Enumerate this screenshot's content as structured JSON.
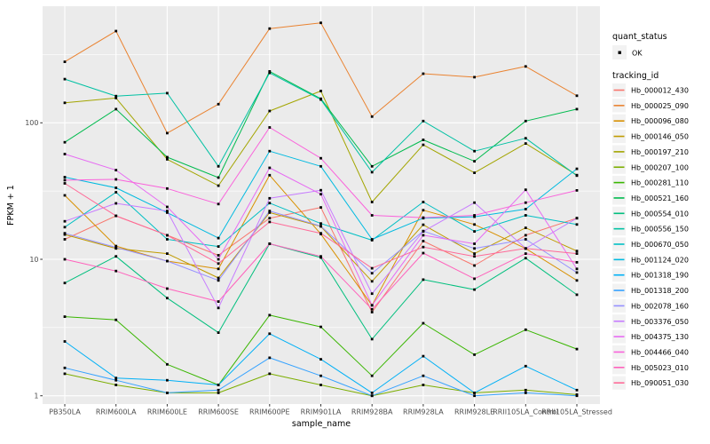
{
  "legend": {
    "quant_status_title": "quant_status",
    "quant_status_items": [
      {
        "label": "OK",
        "marker": "black-square-point"
      }
    ],
    "tracking_id_title": "tracking_id"
  },
  "colors": {
    "panel_bg": "#EBEBEB",
    "grid": "#FFFFFF",
    "tick_text": "#4D4D4D",
    "marker": "#000000",
    "legend_key_bg": "#F2F2F2"
  },
  "chart_data": {
    "type": "line",
    "title": "",
    "xlabel": "sample_name",
    "ylabel": "FPKM + 1",
    "y_scale": "log10",
    "y_ticks": [
      1,
      10,
      100
    ],
    "ylim": [
      1,
      700
    ],
    "grid": "on",
    "legend_position": "right",
    "marker": "black-square",
    "categories": [
      "PB350LA",
      "RRIM600LA",
      "RRIM600LE",
      "RRIM600SE",
      "RRIM600PE",
      "RRIM901LA",
      "RRIM928BA",
      "RRIM928LA",
      "RRIM928LE",
      "RRII105LA_Control",
      "RRII105LA_Stressed"
    ],
    "series": [
      {
        "name": "Hb_000012_430",
        "color": "#F8766D",
        "values": [
          14,
          20.8,
          15,
          10.7,
          20,
          24,
          4.1,
          13.6,
          9,
          15,
          20
        ]
      },
      {
        "name": "Hb_000025_090",
        "color": "#EA8331",
        "values": [
          280,
          470,
          84,
          137,
          490,
          540,
          111,
          229,
          216,
          259,
          158
        ]
      },
      {
        "name": "Hb_000096_080",
        "color": "#D89000",
        "values": [
          29.4,
          12.5,
          9.7,
          8.5,
          41.3,
          15.3,
          4.6,
          22.9,
          18,
          12,
          7
        ]
      },
      {
        "name": "Hb_000146_050",
        "color": "#C09B00",
        "values": [
          15.2,
          12,
          11,
          7.3,
          22,
          17.4,
          6.9,
          17.9,
          11,
          17,
          11.5
        ]
      },
      {
        "name": "Hb_000197_210",
        "color": "#A3A500",
        "values": [
          140,
          152,
          54,
          34.6,
          122,
          171,
          26.3,
          69,
          43,
          70.5,
          41.4
        ]
      },
      {
        "name": "Hb_000207_100",
        "color": "#7CAE00",
        "values": [
          1.45,
          1.2,
          1.05,
          1.05,
          1.45,
          1.2,
          1.0,
          1.2,
          1.05,
          1.1,
          1.02
        ]
      },
      {
        "name": "Hb_000281_110",
        "color": "#39B600",
        "values": [
          3.8,
          3.6,
          1.7,
          1.2,
          3.9,
          3.2,
          1.4,
          3.4,
          2.0,
          3.05,
          2.2
        ]
      },
      {
        "name": "Hb_000521_160",
        "color": "#00BB4E",
        "values": [
          72,
          126,
          56,
          39.7,
          238,
          150,
          48,
          75,
          52.3,
          103,
          126
        ]
      },
      {
        "name": "Hb_000554_010",
        "color": "#00BF7D",
        "values": [
          6.7,
          10.5,
          5.2,
          2.9,
          13,
          10.3,
          2.6,
          7.1,
          6.0,
          10.2,
          5.5
        ]
      },
      {
        "name": "Hb_000556_150",
        "color": "#00C1A3",
        "values": [
          209,
          157,
          165,
          48,
          232,
          148,
          43.5,
          103,
          62,
          77,
          41
        ]
      },
      {
        "name": "Hb_000670_050",
        "color": "#00BFC4",
        "values": [
          17.2,
          31,
          14,
          12.4,
          25.8,
          18.3,
          13.8,
          26.3,
          16,
          21,
          18
        ]
      },
      {
        "name": "Hb_001124_020",
        "color": "#00BAE0",
        "values": [
          40,
          33.4,
          22,
          14.3,
          62,
          48,
          14,
          20,
          20.5,
          23.3,
          46
        ]
      },
      {
        "name": "Hb_001318_190",
        "color": "#00B0F6",
        "values": [
          2.5,
          1.35,
          1.3,
          1.2,
          2.85,
          1.85,
          1.05,
          1.95,
          1.05,
          1.65,
          1.1
        ]
      },
      {
        "name": "Hb_001318_200",
        "color": "#35A2FF",
        "values": [
          1.6,
          1.3,
          1.05,
          1.1,
          1.9,
          1.4,
          1.0,
          1.4,
          1.0,
          1.05,
          1.0
        ]
      },
      {
        "name": "Hb_002078_160",
        "color": "#9590FF",
        "values": [
          15.5,
          12.2,
          9.7,
          7.0,
          22.6,
          17.5,
          7.9,
          16.1,
          12,
          14,
          8
        ]
      },
      {
        "name": "Hb_003376_050",
        "color": "#C77CFF",
        "values": [
          19,
          25.7,
          22.6,
          4.4,
          28,
          32.1,
          5.6,
          16,
          26,
          12,
          20
        ]
      },
      {
        "name": "Hb_004375_130",
        "color": "#E76BF3",
        "values": [
          59,
          45,
          24.2,
          10,
          46.8,
          30,
          4.6,
          15,
          13,
          32.3,
          8.5
        ]
      },
      {
        "name": "Hb_004466_040",
        "color": "#FA62DB",
        "values": [
          38,
          38.5,
          33,
          25.4,
          92.5,
          55,
          21,
          20.2,
          21,
          26,
          32
        ]
      },
      {
        "name": "Hb_005023_010",
        "color": "#FF62BC",
        "values": [
          10,
          8.2,
          6.1,
          4.9,
          13,
          10.5,
          4.3,
          11.1,
          7.2,
          11,
          9.5
        ]
      },
      {
        "name": "Hb_090051_030",
        "color": "#FF6A98",
        "values": [
          36,
          20.8,
          15,
          9.3,
          18.8,
          15.5,
          8.6,
          12.3,
          10.5,
          12,
          11
        ]
      }
    ]
  }
}
